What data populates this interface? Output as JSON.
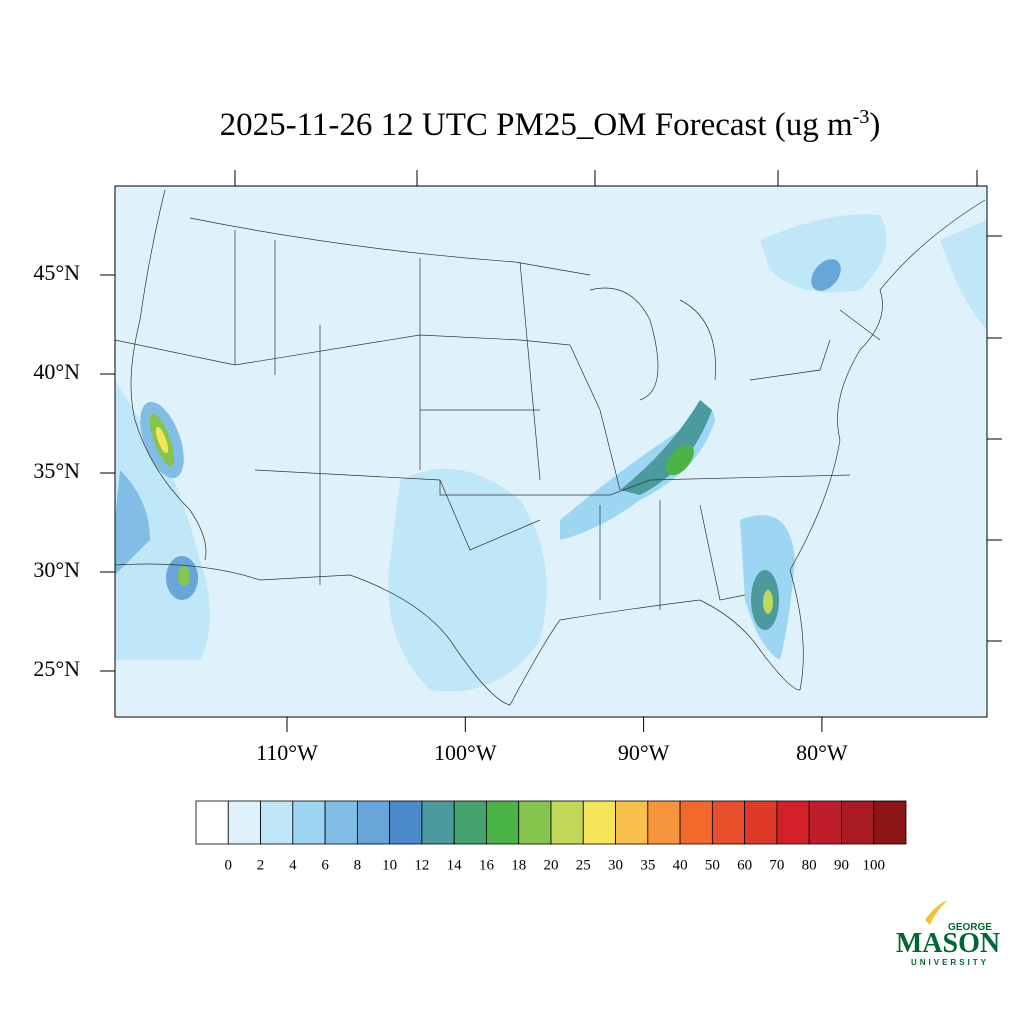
{
  "title": {
    "text": "2025-11-26 12 UTC PM25_OM Forecast (ug m",
    "superscript": "-3",
    "close": ")"
  },
  "lat_labels": [
    {
      "value": 45,
      "label": "45°N"
    },
    {
      "value": 40,
      "label": "40°N"
    },
    {
      "value": 35,
      "label": "35°N"
    },
    {
      "value": 30,
      "label": "30°N"
    },
    {
      "value": 25,
      "label": "25°N"
    }
  ],
  "lon_labels": [
    {
      "value": -110,
      "label": "110°W"
    },
    {
      "value": -100,
      "label": "100°W"
    },
    {
      "value": -90,
      "label": "90°W"
    },
    {
      "value": -80,
      "label": "80°W"
    }
  ],
  "colorbar": {
    "levels": [
      0,
      2,
      4,
      6,
      8,
      10,
      12,
      14,
      16,
      18,
      20,
      25,
      30,
      35,
      40,
      50,
      60,
      70,
      80,
      90,
      100
    ],
    "colors": [
      "#ffffff",
      "#dff2fb",
      "#c0e7f8",
      "#9dd6f3",
      "#82bde6",
      "#68a6da",
      "#4a8ac8",
      "#4a9a9e",
      "#45a46e",
      "#4bb447",
      "#86c54d",
      "#c2d85a",
      "#f5e55a",
      "#f8bf4a",
      "#f6953c",
      "#f26a2b",
      "#e8502b",
      "#df3a27",
      "#d42129",
      "#be1e2a",
      "#a81b22",
      "#8d1617"
    ]
  },
  "logo": {
    "top": "GEORGE",
    "name": "MASON",
    "bottom": "UNIVERSITY"
  }
}
